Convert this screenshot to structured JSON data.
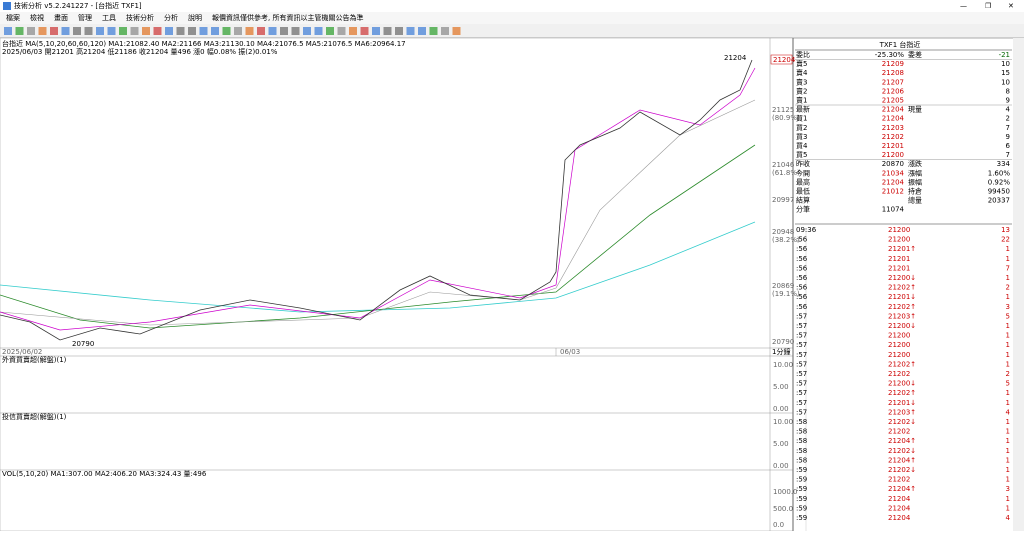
{
  "window": {
    "title": "技術分析 v5.2.241227 - [台指近 TXF1]"
  },
  "menu": [
    "檔案",
    "檢視",
    "畫面",
    "管理",
    "工具",
    "技術分析",
    "分析",
    "說明",
    "報價資訊僅供參考, 所有資訊以主管機關公告為準"
  ],
  "chart": {
    "header": "台指近 MA(5,10,20,60,60,120) MA1:21082.40 MA2:21166 MA3:21130.10 MA4:21076.5 MA5:21076.5 MA6:20964.17",
    "info": "2025/06/03 開21201 高21204 低21186 收21204 量496 漲0 幅0.08% 振(2)0.01%",
    "high_label": "21204",
    "low_label": "20790",
    "last_price": "21204",
    "axis_labels": [
      "21125",
      "(80.9%)",
      "21046",
      "(61.8%)",
      "20997",
      "20948",
      "(38.2%)",
      "20869",
      "(19.1%)",
      "20790"
    ],
    "dates": [
      "2025/06/02",
      "06/03"
    ],
    "period": "1分鐘"
  },
  "panels": [
    {
      "title": "外資買賣超(解盤)(1)",
      "ticks": [
        "10.00",
        "5.00",
        "0.00"
      ]
    },
    {
      "title": "投信買賣超(解盤)(1)",
      "ticks": [
        "10.00",
        "5.00",
        "0.00"
      ]
    },
    {
      "title": "VOL(5,10,20) MA1:307.00 MA2:406.20 MA3:324.43 量:496",
      "ticks": [
        "1000.0",
        "500.0",
        "0.0"
      ]
    }
  ],
  "quote": {
    "header": "TXF1 台指近",
    "rows": [
      [
        "委比",
        "-25.30%",
        "委差",
        "-21"
      ],
      [
        "賣5",
        "21209",
        "",
        "10"
      ],
      [
        "賣4",
        "21208",
        "",
        "15"
      ],
      [
        "賣3",
        "21207",
        "",
        "10"
      ],
      [
        "賣2",
        "21206",
        "",
        "8"
      ],
      [
        "賣1",
        "21205",
        "",
        "9"
      ],
      [
        "最新",
        "21204",
        "現量",
        "4"
      ],
      [
        "買1",
        "21204",
        "",
        "2"
      ],
      [
        "買2",
        "21203",
        "",
        "7"
      ],
      [
        "買3",
        "21202",
        "",
        "9"
      ],
      [
        "買4",
        "21201",
        "",
        "6"
      ],
      [
        "買5",
        "21200",
        "",
        "7"
      ],
      [
        "昨收",
        "20870",
        "漲跌",
        "334"
      ],
      [
        "今開",
        "21034",
        "漲幅",
        "1.60%"
      ],
      [
        "最高",
        "21204",
        "振幅",
        "0.92%"
      ],
      [
        "最低",
        "21012",
        "持倉",
        "99450"
      ],
      [
        "結算",
        "",
        "總量",
        "20337"
      ],
      [
        "分筆",
        "11074",
        "",
        ""
      ]
    ],
    "ticks": [
      [
        "09:36",
        "21200",
        "13"
      ],
      [
        ":56",
        "21200",
        "22"
      ],
      [
        ":56",
        "21201↑",
        "1"
      ],
      [
        ":56",
        "21201",
        "1"
      ],
      [
        ":56",
        "21201",
        "7"
      ],
      [
        ":56",
        "21200↓",
        "1"
      ],
      [
        ":56",
        "21202↑",
        "2"
      ],
      [
        ":56",
        "21201↓",
        "1"
      ],
      [
        ":56",
        "21202↑",
        "3"
      ],
      [
        ":57",
        "21203↑",
        "5"
      ],
      [
        ":57",
        "21200↓",
        "1"
      ],
      [
        ":57",
        "21200",
        "1"
      ],
      [
        ":57",
        "21200",
        "1"
      ],
      [
        ":57",
        "21200",
        "1"
      ],
      [
        ":57",
        "21202↑",
        "1"
      ],
      [
        ":57",
        "21202",
        "2"
      ],
      [
        ":57",
        "21200↓",
        "5"
      ],
      [
        ":57",
        "21202↑",
        "1"
      ],
      [
        ":57",
        "21201↓",
        "1"
      ],
      [
        ":57",
        "21203↑",
        "4"
      ],
      [
        ":58",
        "21202↓",
        "1"
      ],
      [
        ":58",
        "21202",
        "1"
      ],
      [
        ":58",
        "21204↑",
        "1"
      ],
      [
        ":58",
        "21202↓",
        "1"
      ],
      [
        ":58",
        "21204↑",
        "1"
      ],
      [
        ":59",
        "21202↓",
        "1"
      ],
      [
        ":59",
        "21202",
        "1"
      ],
      [
        ":59",
        "21204↑",
        "3"
      ],
      [
        ":59",
        "21204",
        "1"
      ],
      [
        ":59",
        "21204",
        "1"
      ],
      [
        ":59",
        "21204",
        "4"
      ]
    ]
  }
}
